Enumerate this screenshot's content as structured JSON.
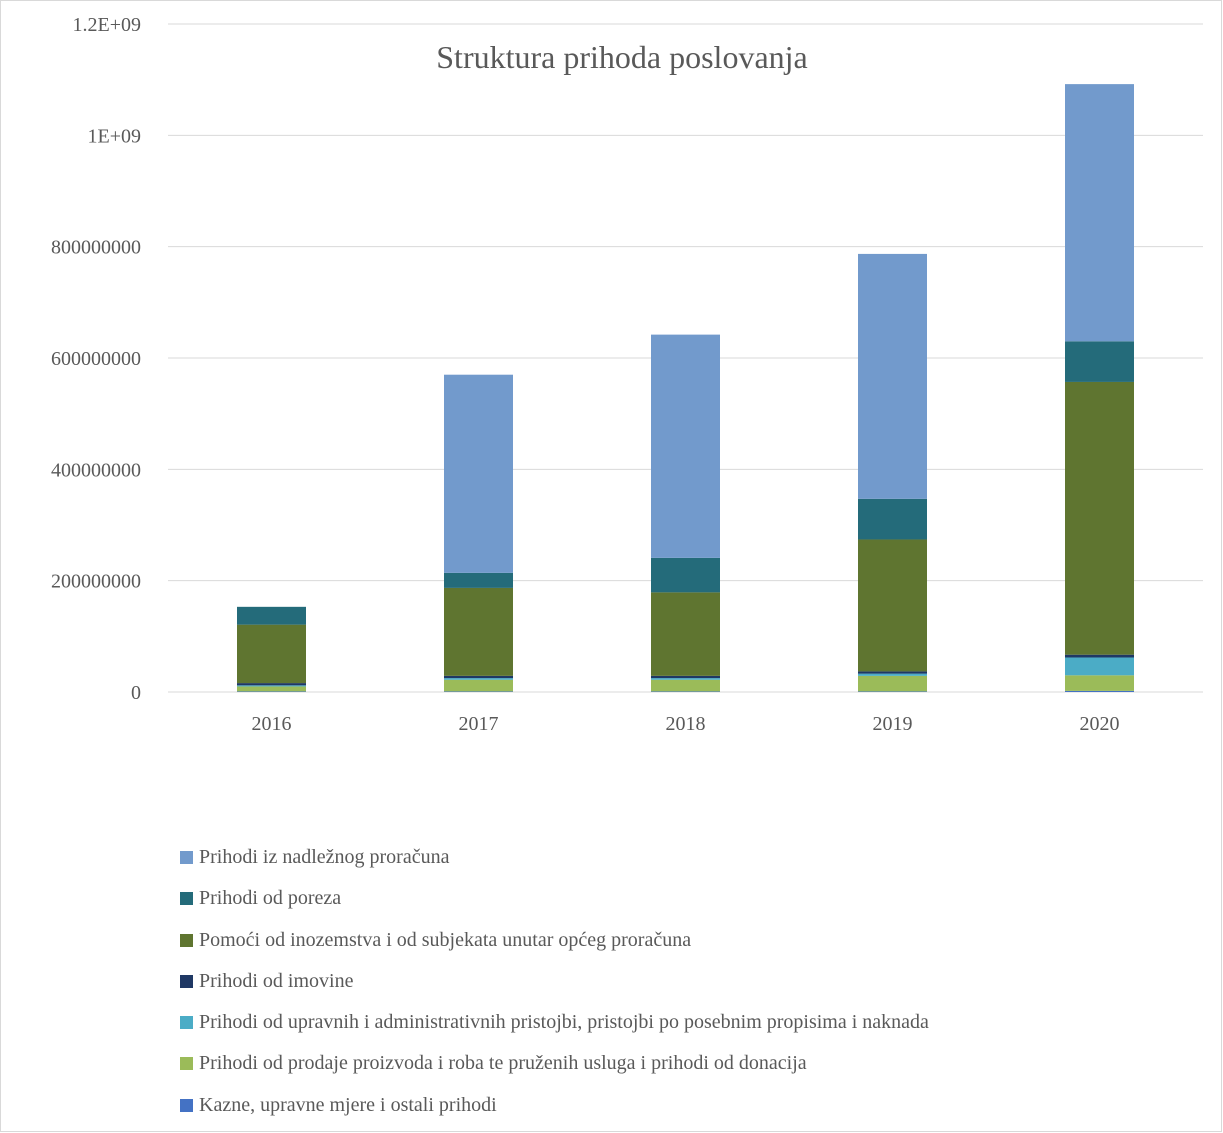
{
  "chart_data": {
    "type": "bar",
    "stacked": true,
    "title": "Struktura prihoda poslovanja",
    "xlabel": "",
    "ylabel": "",
    "categories": [
      "2016",
      "2017",
      "2018",
      "2019",
      "2020"
    ],
    "ylim": [
      0,
      1200000000
    ],
    "yticks": [
      0,
      200000000,
      400000000,
      600000000,
      800000000,
      1000000000,
      1200000000
    ],
    "ytick_labels": [
      "0",
      "200000000",
      "400000000",
      "600000000",
      "800000000",
      "1E+09",
      "1.2E+09"
    ],
    "grid": true,
    "legend_position": "bottom",
    "series": [
      {
        "name": "Kazne, upravne mjere i ostali prihodi",
        "color": "#4472C4",
        "values": [
          1000000,
          1000000,
          1000000,
          1000000,
          2000000
        ]
      },
      {
        "name": "Prihodi od prodaje proizvoda i roba te pruženih usluga i prihodi od donacija",
        "color": "#9BBB59",
        "values": [
          9000000,
          21000000,
          21000000,
          28000000,
          28000000
        ]
      },
      {
        "name": "Prihodi od upravnih i administrativnih pristojbi, pristojbi po posebnim propisima i naknada",
        "color": "#4BACC6",
        "values": [
          2000000,
          3000000,
          3000000,
          4000000,
          32000000
        ]
      },
      {
        "name": "Prihodi od imovine",
        "color": "#1F3864",
        "values": [
          4000000,
          4000000,
          4000000,
          4000000,
          5000000
        ]
      },
      {
        "name": "Pomoći od inozemstva i od subjekata unutar općeg proračuna",
        "color": "#5F7530",
        "values": [
          105000000,
          158000000,
          150000000,
          237000000,
          490000000
        ]
      },
      {
        "name": "Prihodi od poreza",
        "color": "#246B7A",
        "values": [
          32000000,
          27000000,
          62000000,
          73000000,
          73000000
        ]
      },
      {
        "name": "Prihodi iz nadležnog proračuna",
        "color": "#729ACC",
        "values": [
          0,
          356000000,
          401000000,
          440000000,
          462000000
        ]
      }
    ]
  },
  "legend_order": [
    "Prihodi iz nadležnog proračuna",
    "Prihodi od poreza",
    "Pomoći od inozemstva i od subjekata unutar općeg proračuna",
    "Prihodi od imovine",
    "Prihodi od upravnih i administrativnih pristojbi, pristojbi po posebnim propisima i naknada",
    "Prihodi od prodaje proizvoda i roba te pruženih usluga i prihodi od donacija",
    "Kazne, upravne mjere i ostali prihodi"
  ]
}
